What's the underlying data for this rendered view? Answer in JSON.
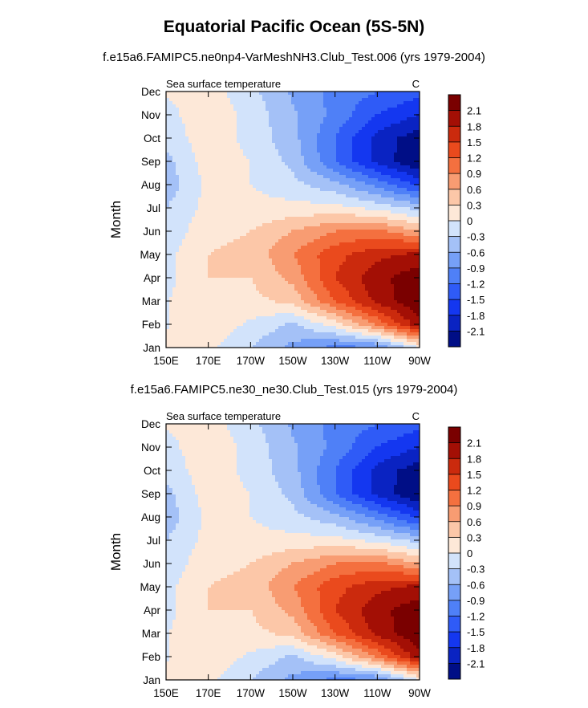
{
  "title": "Equatorial Pacific Ocean (5S-5N)",
  "panels": [
    {
      "subtitle": "f.e15a6.FAMIPC5.ne0np4-VarMeshNH3.Club_Test.006 (yrs 1979-2004)",
      "left_label": "Sea surface temperature",
      "right_label": "C"
    },
    {
      "subtitle": "f.e15a6.FAMIPC5.ne30_ne30.Club_Test.015 (yrs 1979-2004)",
      "left_label": "Sea surface temperature",
      "right_label": "C"
    }
  ],
  "chart_data": [
    {
      "type": "heatmap",
      "title": "Equatorial Pacific Ocean (5S-5N)",
      "subtitle": "f.e15a6.FAMIPC5.ne0np4-VarMeshNH3.Club_Test.006 (yrs 1979-2004)",
      "left_label": "Sea surface temperature",
      "units": "C",
      "xlabel": "",
      "ylabel": "Month",
      "x_ticks": [
        "150E",
        "170E",
        "170W",
        "150W",
        "130W",
        "110W",
        "90W"
      ],
      "x": [
        150,
        170,
        190,
        210,
        230,
        250,
        270
      ],
      "y_ticks": [
        "Jan",
        "Feb",
        "Mar",
        "Apr",
        "May",
        "Jun",
        "Jul",
        "Aug",
        "Sep",
        "Oct",
        "Nov",
        "Dec"
      ],
      "levels": [
        -2.1,
        -1.8,
        -1.5,
        -1.2,
        -0.9,
        -0.6,
        -0.3,
        0,
        0.3,
        0.6,
        0.9,
        1.2,
        1.5,
        1.8,
        2.1
      ],
      "colors": [
        "#000e86",
        "#0a23c2",
        "#1437f0",
        "#2f5bf7",
        "#4f80f7",
        "#76a0f7",
        "#a4c1f7",
        "#d2e3fb",
        "#fde8d8",
        "#fcc7a8",
        "#f89c72",
        "#f4703f",
        "#ea4a1d",
        "#cb2a0d",
        "#a30f05",
        "#7a0000"
      ],
      "values": [
        [
          0.05,
          0.07,
          -0.3,
          -0.7,
          -1.0,
          -0.9,
          0.0
        ],
        [
          -0.02,
          0.2,
          -0.05,
          -0.35,
          0.15,
          0.95,
          2.0
        ],
        [
          -0.02,
          0.3,
          0.2,
          0.4,
          1.2,
          1.9,
          2.4
        ],
        [
          -0.1,
          0.3,
          0.3,
          0.7,
          1.5,
          2.0,
          2.3
        ],
        [
          -0.1,
          0.3,
          0.4,
          0.9,
          1.4,
          1.7,
          1.9
        ],
        [
          -0.2,
          0.2,
          0.3,
          0.6,
          0.9,
          1.0,
          0.6
        ],
        [
          -0.3,
          0.1,
          0.1,
          0.1,
          0.1,
          -0.1,
          -0.4
        ],
        [
          -0.5,
          0.1,
          0.0,
          -0.2,
          -0.5,
          -1.0,
          -1.6
        ],
        [
          -0.4,
          0.15,
          0.0,
          -0.4,
          -1.2,
          -1.9,
          -2.4
        ],
        [
          -0.2,
          0.2,
          -0.1,
          -0.5,
          -1.2,
          -1.9,
          -2.3
        ],
        [
          -0.1,
          0.2,
          -0.1,
          -0.55,
          -1.0,
          -1.5,
          -1.8
        ],
        [
          0.02,
          0.15,
          -0.2,
          -0.65,
          -1.0,
          -1.2,
          -1.4
        ]
      ]
    },
    {
      "type": "heatmap",
      "title": "Equatorial Pacific Ocean (5S-5N)",
      "subtitle": "f.e15a6.FAMIPC5.ne30_ne30.Club_Test.015 (yrs 1979-2004)",
      "left_label": "Sea surface temperature",
      "units": "C",
      "xlabel": "",
      "ylabel": "Month",
      "x_ticks": [
        "150E",
        "170E",
        "170W",
        "150W",
        "130W",
        "110W",
        "90W"
      ],
      "x": [
        150,
        170,
        190,
        210,
        230,
        250,
        270
      ],
      "y_ticks": [
        "Jan",
        "Feb",
        "Mar",
        "Apr",
        "May",
        "Jun",
        "Jul",
        "Aug",
        "Sep",
        "Oct",
        "Nov",
        "Dec"
      ],
      "levels": [
        -2.1,
        -1.8,
        -1.5,
        -1.2,
        -0.9,
        -0.6,
        -0.3,
        0,
        0.3,
        0.6,
        0.9,
        1.2,
        1.5,
        1.8,
        2.1
      ],
      "colors": [
        "#000e86",
        "#0a23c2",
        "#1437f0",
        "#2f5bf7",
        "#4f80f7",
        "#76a0f7",
        "#a4c1f7",
        "#d2e3fb",
        "#fde8d8",
        "#fcc7a8",
        "#f89c72",
        "#f4703f",
        "#ea4a1d",
        "#cb2a0d",
        "#a30f05",
        "#7a0000"
      ],
      "values": [
        [
          0.05,
          0.07,
          -0.3,
          -0.7,
          -1.0,
          -0.9,
          0.0
        ],
        [
          -0.02,
          0.2,
          -0.05,
          -0.35,
          0.15,
          0.95,
          2.0
        ],
        [
          -0.02,
          0.3,
          0.2,
          0.4,
          1.2,
          1.9,
          2.4
        ],
        [
          -0.1,
          0.3,
          0.3,
          0.7,
          1.5,
          2.0,
          2.3
        ],
        [
          -0.1,
          0.3,
          0.4,
          0.9,
          1.4,
          1.7,
          1.9
        ],
        [
          -0.2,
          0.2,
          0.3,
          0.6,
          0.9,
          1.0,
          0.6
        ],
        [
          -0.3,
          0.1,
          0.1,
          0.1,
          0.1,
          -0.1,
          -0.4
        ],
        [
          -0.5,
          0.1,
          0.0,
          -0.2,
          -0.5,
          -1.0,
          -1.6
        ],
        [
          -0.4,
          0.15,
          0.0,
          -0.4,
          -1.2,
          -1.9,
          -2.4
        ],
        [
          -0.2,
          0.2,
          -0.1,
          -0.5,
          -1.2,
          -1.9,
          -2.3
        ],
        [
          -0.1,
          0.2,
          -0.1,
          -0.55,
          -1.0,
          -1.5,
          -1.8
        ],
        [
          0.02,
          0.15,
          -0.2,
          -0.65,
          -1.0,
          -1.2,
          -1.4
        ]
      ]
    }
  ]
}
